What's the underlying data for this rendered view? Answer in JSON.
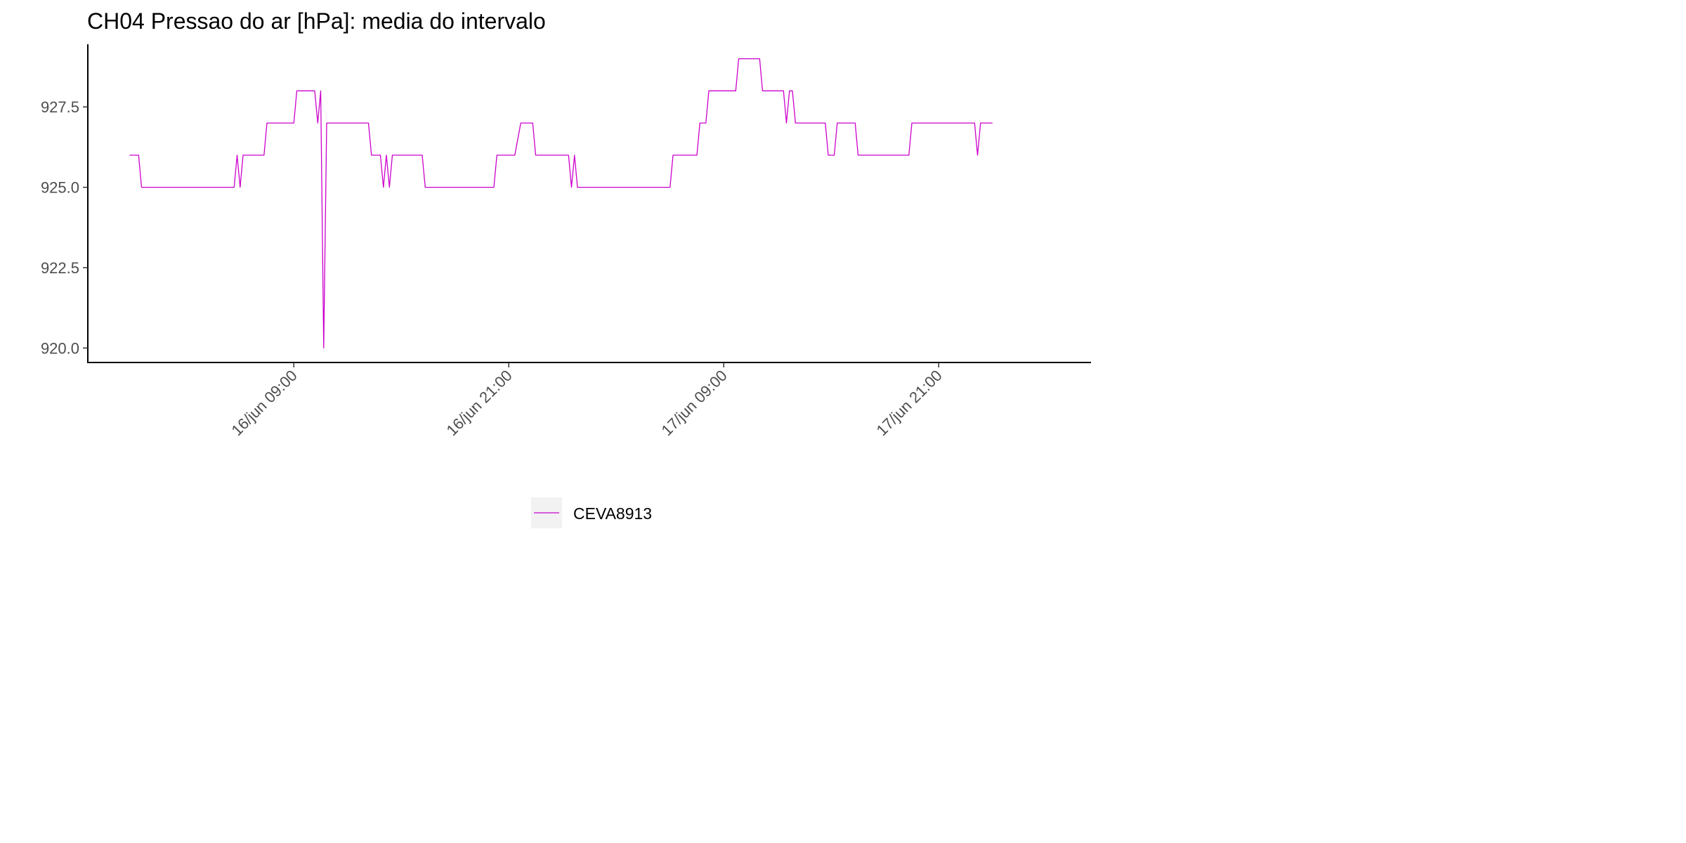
{
  "chart_data": {
    "type": "line",
    "title": "CH04 Pressao do ar [hPa]: media do intervalo",
    "xlabel": "",
    "ylabel": "",
    "x_range": [
      "2019-06-15T21:30",
      "2019-06-18T05:30"
    ],
    "y_range": [
      919.55,
      929.45
    ],
    "yticks": [
      {
        "value": 920.0,
        "label": "920.0"
      },
      {
        "value": 922.5,
        "label": "922.5"
      },
      {
        "value": 925.0,
        "label": "925.0"
      },
      {
        "value": 927.5,
        "label": "927.5"
      }
    ],
    "xticks": [
      {
        "value": "2019-06-16T09:00",
        "label": "16/jun 09:00"
      },
      {
        "value": "2019-06-16T21:00",
        "label": "16/jun 21:00"
      },
      {
        "value": "2019-06-17T09:00",
        "label": "17/jun 09:00"
      },
      {
        "value": "2019-06-17T21:00",
        "label": "17/jun 21:00"
      }
    ],
    "grid": false,
    "legend_position": "bottom",
    "series": [
      {
        "name": "CEVA8913",
        "color": "#CC00CC",
        "points": [
          [
            "2019-06-15T23:50",
            926
          ],
          [
            "2019-06-16T00:20",
            926
          ],
          [
            "2019-06-16T00:30",
            925
          ],
          [
            "2019-06-16T05:40",
            925
          ],
          [
            "2019-06-16T05:50",
            926
          ],
          [
            "2019-06-16T06:00",
            925
          ],
          [
            "2019-06-16T06:10",
            926
          ],
          [
            "2019-06-16T07:20",
            926
          ],
          [
            "2019-06-16T07:30",
            927
          ],
          [
            "2019-06-16T09:00",
            927
          ],
          [
            "2019-06-16T09:10",
            928
          ],
          [
            "2019-06-16T10:10",
            928
          ],
          [
            "2019-06-16T10:20",
            927
          ],
          [
            "2019-06-16T10:30",
            928
          ],
          [
            "2019-06-16T10:40",
            920
          ],
          [
            "2019-06-16T10:50",
            927
          ],
          [
            "2019-06-16T13:10",
            927
          ],
          [
            "2019-06-16T13:20",
            926
          ],
          [
            "2019-06-16T13:50",
            926
          ],
          [
            "2019-06-16T14:00",
            925
          ],
          [
            "2019-06-16T14:10",
            926
          ],
          [
            "2019-06-16T14:20",
            925
          ],
          [
            "2019-06-16T14:30",
            926
          ],
          [
            "2019-06-16T16:10",
            926
          ],
          [
            "2019-06-16T16:20",
            925
          ],
          [
            "2019-06-16T20:10",
            925
          ],
          [
            "2019-06-16T20:20",
            926
          ],
          [
            "2019-06-16T21:20",
            926
          ],
          [
            "2019-06-16T21:40",
            927
          ],
          [
            "2019-06-16T22:20",
            927
          ],
          [
            "2019-06-16T22:30",
            926
          ],
          [
            "2019-06-17T00:20",
            926
          ],
          [
            "2019-06-17T00:30",
            925
          ],
          [
            "2019-06-17T00:40",
            926
          ],
          [
            "2019-06-17T00:50",
            925
          ],
          [
            "2019-06-17T06:00",
            925
          ],
          [
            "2019-06-17T06:10",
            926
          ],
          [
            "2019-06-17T07:30",
            926
          ],
          [
            "2019-06-17T07:40",
            927
          ],
          [
            "2019-06-17T08:00",
            927
          ],
          [
            "2019-06-17T08:10",
            928
          ],
          [
            "2019-06-17T09:40",
            928
          ],
          [
            "2019-06-17T09:50",
            929
          ],
          [
            "2019-06-17T11:00",
            929
          ],
          [
            "2019-06-17T11:10",
            928
          ],
          [
            "2019-06-17T12:20",
            928
          ],
          [
            "2019-06-17T12:30",
            927
          ],
          [
            "2019-06-17T12:40",
            928
          ],
          [
            "2019-06-17T12:50",
            928
          ],
          [
            "2019-06-17T13:00",
            927
          ],
          [
            "2019-06-17T14:40",
            927
          ],
          [
            "2019-06-17T14:50",
            926
          ],
          [
            "2019-06-17T15:10",
            926
          ],
          [
            "2019-06-17T15:20",
            927
          ],
          [
            "2019-06-17T16:20",
            927
          ],
          [
            "2019-06-17T16:30",
            926
          ],
          [
            "2019-06-17T19:20",
            926
          ],
          [
            "2019-06-17T19:30",
            927
          ],
          [
            "2019-06-17T23:00",
            927
          ],
          [
            "2019-06-17T23:10",
            926
          ],
          [
            "2019-06-17T23:20",
            927
          ],
          [
            "2019-06-18T00:00",
            927
          ]
        ]
      }
    ]
  }
}
